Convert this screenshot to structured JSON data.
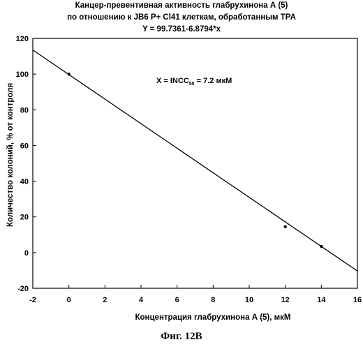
{
  "chart_data": {
    "type": "scatter",
    "title_lines": [
      "Канцер-превентивная активность глабрухинона А (5)",
      "по отношению к JB6 P+ Cl41 клеткам, обработанным TPA",
      "Y = 99.7361-6.8794*x"
    ],
    "xlabel": "Концентрация глабрухинона А (5), мкМ",
    "ylabel": "Количество колоний, % от контроля",
    "xlim": [
      -2,
      16
    ],
    "ylim": [
      -20,
      120
    ],
    "x_ticks": [
      "-2",
      "0",
      "2",
      "4",
      "6",
      "8",
      "10",
      "12",
      "14",
      "16"
    ],
    "y_ticks": [
      "-20",
      "0",
      "20",
      "40",
      "60",
      "80",
      "100",
      "120"
    ],
    "points": [
      {
        "x": 0,
        "y": 100
      },
      {
        "x": 12,
        "y": 14.5
      },
      {
        "x": 14,
        "y": 3.5
      }
    ],
    "regression": {
      "intercept": 99.7361,
      "slope": -6.8794
    },
    "annotation": {
      "prefix": "X = INCC",
      "subscript": "50",
      "suffix": " = 7.2  мкМ"
    },
    "grid": false
  },
  "caption": "Фиг. 12В"
}
